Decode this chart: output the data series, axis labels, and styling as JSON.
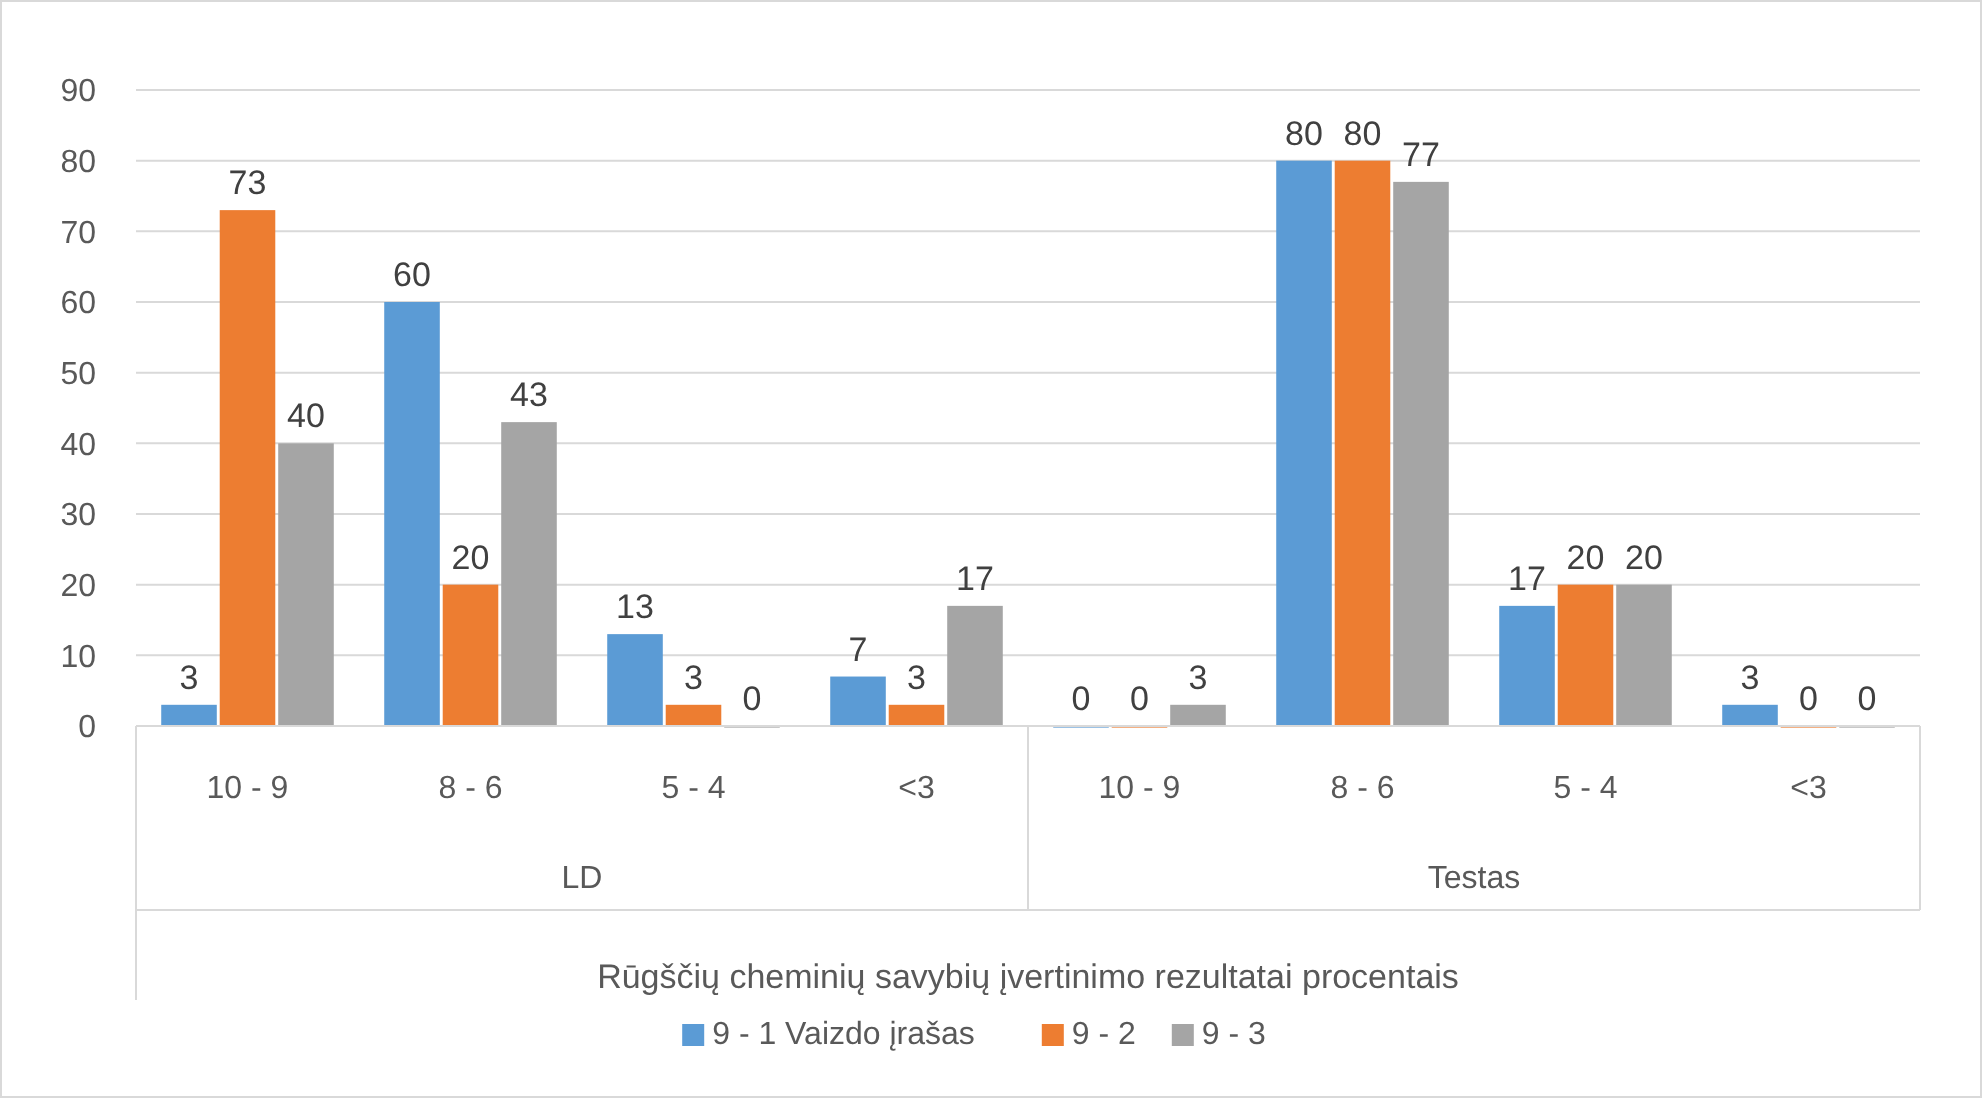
{
  "chart_data": {
    "type": "bar",
    "xlabel": "Rūgščių cheminių savybių įvertinimo rezultatai procentais",
    "categories": [
      "10 - 9",
      "8 - 6",
      "5 -  4",
      "<3",
      "10 - 9",
      "8 - 6",
      "5 -  4",
      "<3"
    ],
    "annotations": [
      "LD",
      "Testas"
    ],
    "series": [
      {
        "name": "9 - 1 Vaizdo įrašas",
        "color": "#5b9bd5",
        "values": [
          3,
          60,
          13,
          7,
          0,
          80,
          17,
          3
        ]
      },
      {
        "name": "9 - 2",
        "color": "#ed7d31",
        "values": [
          73,
          20,
          3,
          3,
          0,
          80,
          20,
          0
        ]
      },
      {
        "name": "9 - 3",
        "color": "#a5a5a5",
        "values": [
          40,
          43,
          0,
          17,
          3,
          77,
          20,
          0
        ]
      }
    ],
    "ylim": [
      0,
      90
    ],
    "yticks": [
      0,
      10,
      20,
      30,
      40,
      50,
      60,
      70,
      80,
      90
    ],
    "grid": "y",
    "legend": "bottom",
    "data_labels": true
  }
}
